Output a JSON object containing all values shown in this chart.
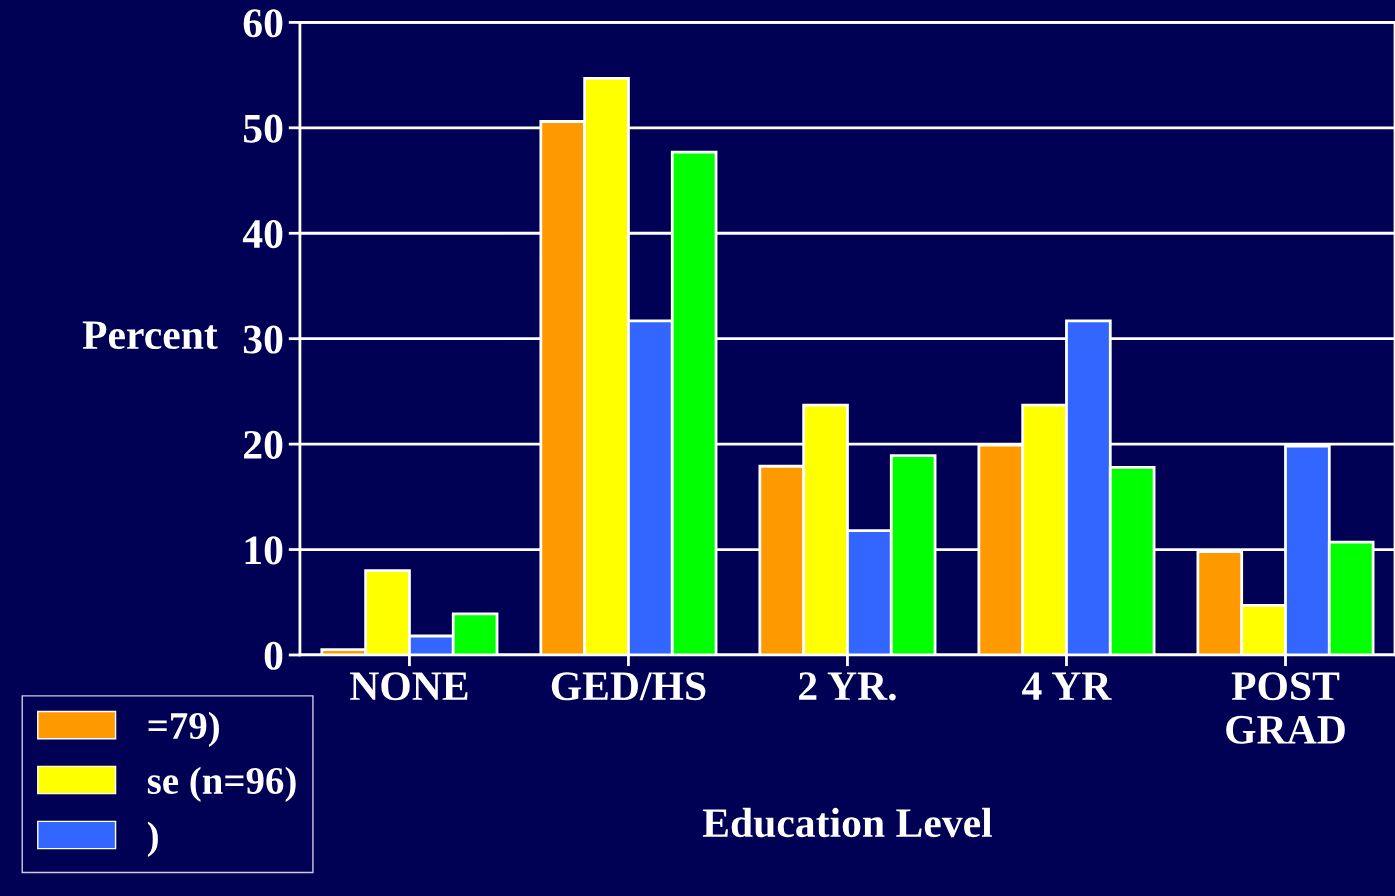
{
  "chart_data": {
    "type": "bar",
    "xlabel": "Education Level",
    "ylabel": "Percent",
    "categories": [
      "NONE",
      "GED/HS",
      "2 YR.",
      "4 YR",
      "POST\nGRAD"
    ],
    "series": [
      {
        "name": "=79)",
        "color": "#ff9900",
        "values": [
          0.5,
          50.6,
          17.9,
          19.9,
          9.8
        ]
      },
      {
        "name": "se (n=96)",
        "color": "#ffff00",
        "values": [
          8,
          54.7,
          23.7,
          23.7,
          4.7
        ]
      },
      {
        "name": ")",
        "color": "#3366ff",
        "values": [
          1.8,
          31.7,
          11.8,
          31.7,
          19.8
        ]
      },
      {
        "color": "#00ff00",
        "values": [
          3.9,
          47.7,
          18.9,
          17.8,
          10.7
        ]
      }
    ],
    "ylim": [
      0,
      60
    ],
    "yticks": [
      0,
      10,
      20,
      30,
      40,
      50,
      60
    ],
    "grid": "y",
    "legend": "bottom left"
  }
}
